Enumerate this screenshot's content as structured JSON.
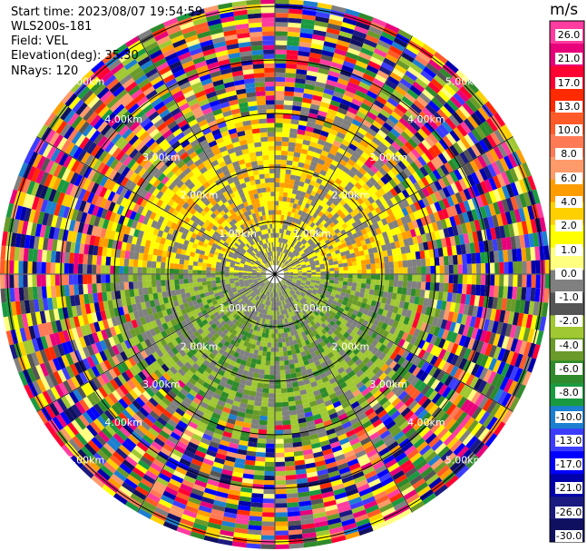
{
  "header": {
    "start_time": "Start time: 2023/08/07 19:54:59",
    "site": "WLS200s-181",
    "field": "Field: VEL",
    "elevation": "Elevation(deg): 35.30",
    "nrays": "NRays: 120"
  },
  "chart_data": {
    "type": "heatmap",
    "projection": "polar-ppi",
    "unit": "m/s",
    "ring_labels": [
      "1.00km",
      "2.00km",
      "3.00km",
      "4.00km",
      "5.00km"
    ],
    "nrays": 120,
    "colorbar": {
      "ticks": [
        "26.0",
        "21.0",
        "17.0",
        "13.0",
        "10.0",
        "8.0",
        "6.0",
        "4.0",
        "2.0",
        "1.0",
        "0.0",
        "-1.0",
        "-2.0",
        "-4.0",
        "-6.0",
        "-8.0",
        "-10.0",
        "-13.0",
        "-17.0",
        "-21.0",
        "-26.0",
        "-30.0"
      ],
      "colors": [
        "#ff3ca0",
        "#e8007a",
        "#ff0033",
        "#ff2a00",
        "#ff5a28",
        "#ff7a55",
        "#ff9a6a",
        "#ff9d00",
        "#ffd000",
        "#ffff00",
        "#ffff80",
        "#808080",
        "#555555",
        "#a0c832",
        "#6a9a2a",
        "#2e8a2a",
        "#1a9a40",
        "#1c7fd0",
        "#3c3cff",
        "#0000ff",
        "#0000aa",
        "#1a1a80",
        "#101060"
      ]
    }
  }
}
